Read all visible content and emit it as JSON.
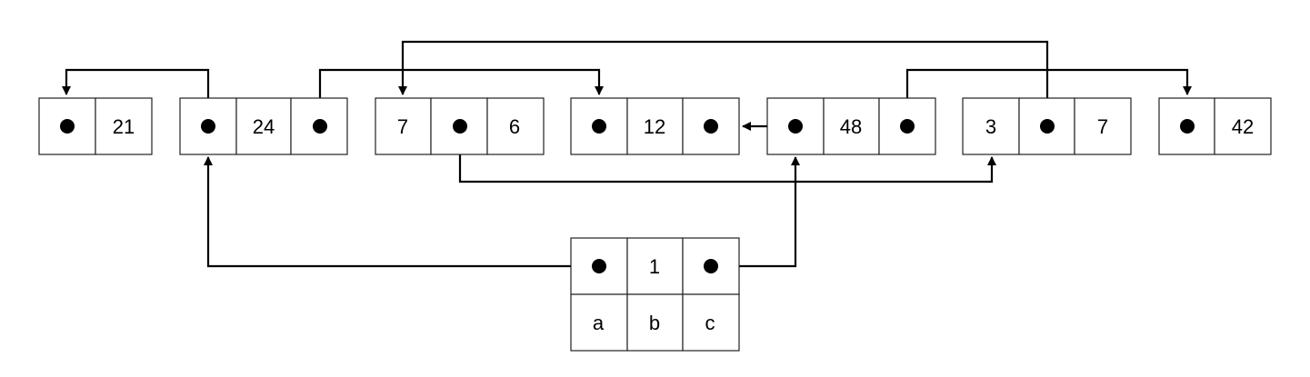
{
  "colors": {
    "stroke": "#222222",
    "pointer": "#000000",
    "background": "#ffffff"
  },
  "nodes": [
    {
      "id": "n21",
      "cells": [
        {
          "type": "pointer"
        },
        {
          "type": "value",
          "text": "21"
        }
      ]
    },
    {
      "id": "n24",
      "cells": [
        {
          "type": "pointer"
        },
        {
          "type": "value",
          "text": "24"
        },
        {
          "type": "pointer"
        }
      ]
    },
    {
      "id": "n7-6",
      "cells": [
        {
          "type": "value",
          "text": "7"
        },
        {
          "type": "pointer"
        },
        {
          "type": "value",
          "text": "6"
        }
      ]
    },
    {
      "id": "n12",
      "cells": [
        {
          "type": "pointer"
        },
        {
          "type": "value",
          "text": "12"
        },
        {
          "type": "pointer"
        }
      ]
    },
    {
      "id": "n48",
      "cells": [
        {
          "type": "pointer"
        },
        {
          "type": "value",
          "text": "48"
        },
        {
          "type": "pointer"
        }
      ]
    },
    {
      "id": "n3-7",
      "cells": [
        {
          "type": "value",
          "text": "3"
        },
        {
          "type": "pointer"
        },
        {
          "type": "value",
          "text": "7"
        }
      ]
    },
    {
      "id": "n42",
      "cells": [
        {
          "type": "pointer"
        },
        {
          "type": "value",
          "text": "42"
        }
      ]
    },
    {
      "id": "root",
      "cells": [
        {
          "type": "pointer"
        },
        {
          "type": "value",
          "text": "1"
        },
        {
          "type": "pointer"
        }
      ],
      "labels": [
        "a",
        "b",
        "c"
      ]
    }
  ],
  "edges": [
    {
      "from": "n24.0",
      "to": "n21"
    },
    {
      "from": "n24.2",
      "to": "n12"
    },
    {
      "from": "n3-7.1",
      "to": "n7-6"
    },
    {
      "from": "n48.2",
      "to": "n42"
    },
    {
      "from": "n48.0",
      "to": "n12"
    },
    {
      "from": "n7-6.1",
      "to": "n3-7"
    },
    {
      "from": "root.0",
      "to": "n24"
    },
    {
      "from": "root.2",
      "to": "n48"
    }
  ]
}
